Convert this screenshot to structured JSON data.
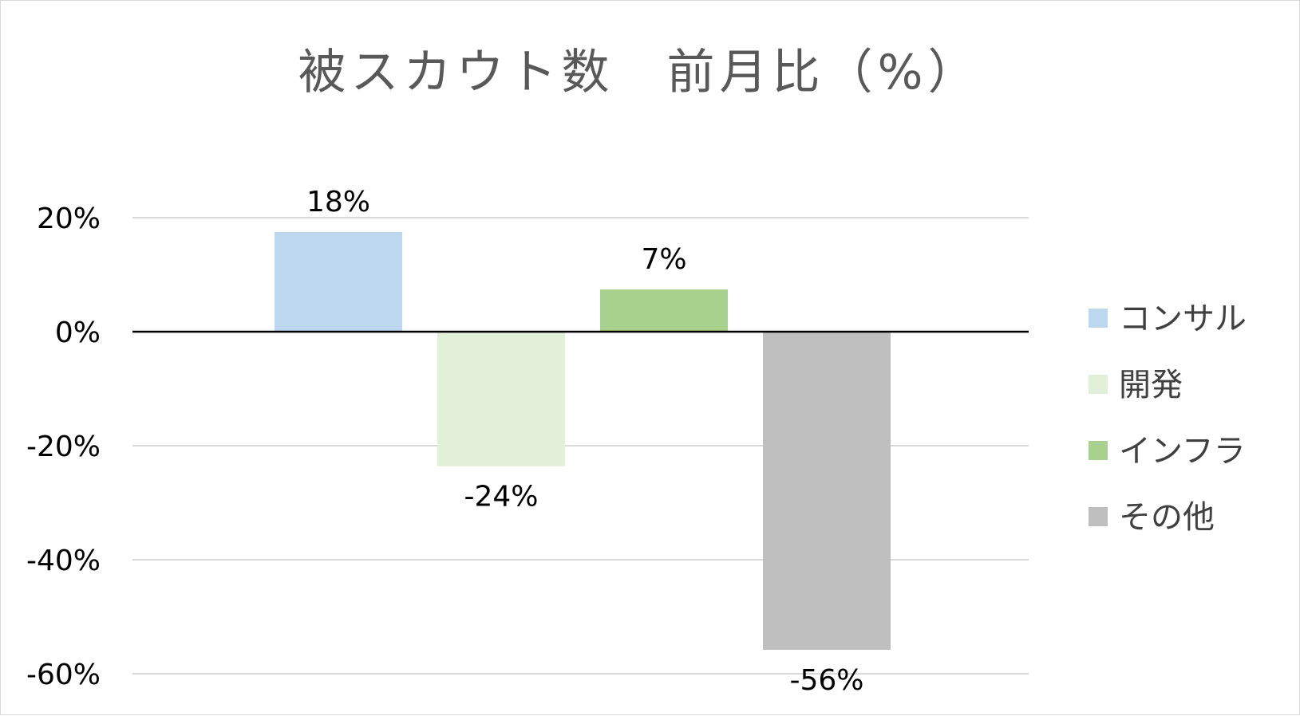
{
  "chart_data": {
    "type": "bar",
    "title": "被スカウト数　前月比（%）",
    "xlabel": "",
    "ylabel": "",
    "ylim": [
      -60,
      20
    ],
    "ytick_values": [
      20,
      0,
      -20,
      -40,
      -60
    ],
    "ytick_labels": [
      "20%",
      "0%",
      "-20%",
      "-40%",
      "-60%"
    ],
    "grid": true,
    "legend_position": "right",
    "series": [
      {
        "name": "コンサル",
        "value": 17.5,
        "label": "18%",
        "color": "#bdd7ee"
      },
      {
        "name": "開発",
        "value": -23.6,
        "label": "-24%",
        "color": "#e2efd9"
      },
      {
        "name": "インフラ",
        "value": 7.4,
        "label": "7%",
        "color": "#a9d18e"
      },
      {
        "name": "その他",
        "value": -55.8,
        "label": "-56%",
        "color": "#bfbfbf"
      }
    ]
  }
}
